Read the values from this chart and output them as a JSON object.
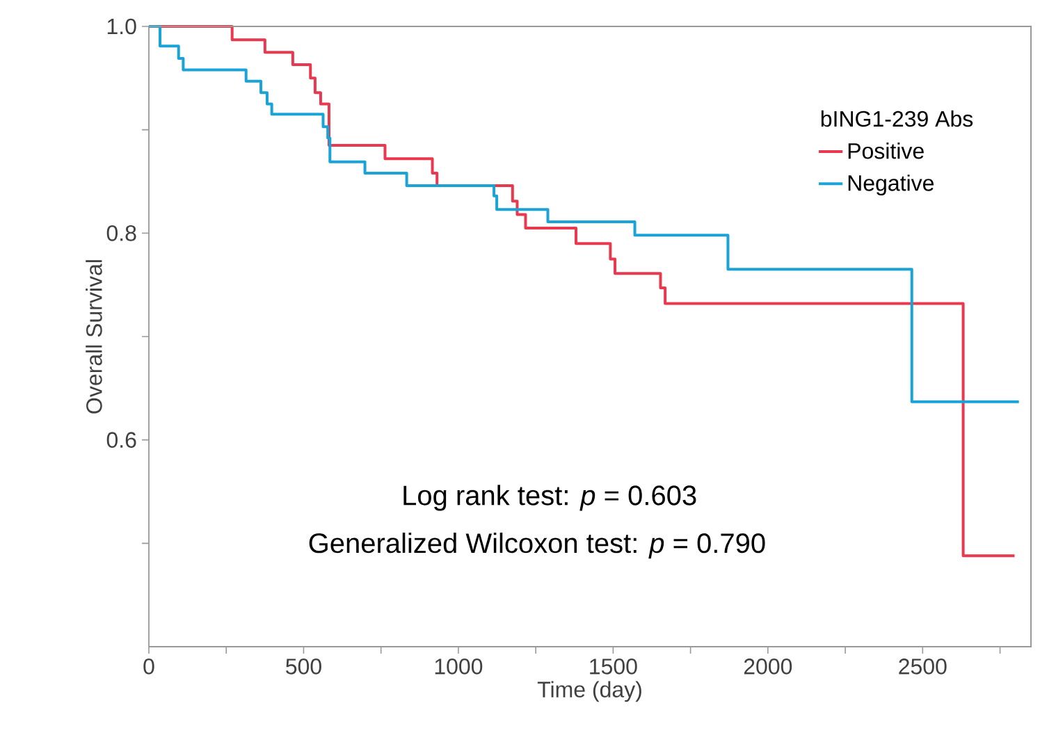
{
  "chart_data": {
    "type": "step",
    "xlabel": "Time (day)",
    "ylabel": "Overall Survival",
    "legend_title": "bING1-239 Abs",
    "legend": "top right",
    "xlim": [
      0,
      2850
    ],
    "ylim": [
      0.4,
      1.0
    ],
    "xticks": [
      0,
      {
        "value": 250,
        "label": null
      },
      500,
      {
        "value": 750,
        "label": null
      },
      1000,
      {
        "value": 1250,
        "label": null
      },
      1500,
      {
        "value": 1750,
        "label": null
      },
      2000,
      {
        "value": 2250,
        "label": null
      },
      2500,
      {
        "value": 2750,
        "label": null
      }
    ],
    "yticks": [
      {
        "value": 0.5,
        "label": null
      },
      0.6,
      {
        "value": 0.7,
        "label": null
      },
      0.8,
      {
        "value": 0.9,
        "label": null
      },
      {
        "value": 1.0,
        "label": "1.0"
      }
    ],
    "annotations": [
      "Log rank test: *p* = 0.603",
      "Generalized Wilcoxon test: *p* = 0.790"
    ],
    "series": [
      {
        "name": "Positive",
        "color": "#e8394f",
        "x": [
          0,
          269,
          375,
          465,
          522,
          537,
          555,
          582,
          763,
          916,
          931,
          1175,
          1190,
          1217,
          1380,
          1491,
          1506,
          1653,
          1668,
          2631,
          2797
        ],
        "values": [
          1.0,
          0.987,
          0.975,
          0.963,
          0.95,
          0.936,
          0.925,
          0.885,
          0.872,
          0.858,
          0.846,
          0.831,
          0.818,
          0.805,
          0.79,
          0.775,
          0.761,
          0.747,
          0.732,
          0.488,
          0.488
        ]
      },
      {
        "name": "Negative",
        "color": "#1aa3d6",
        "x": [
          0,
          36,
          96,
          111,
          314,
          362,
          382,
          397,
          563,
          578,
          585,
          698,
          833,
          1115,
          1124,
          1289,
          1570,
          1871,
          2465,
          2811
        ],
        "values": [
          1.0,
          0.981,
          0.969,
          0.958,
          0.947,
          0.936,
          0.925,
          0.915,
          0.903,
          0.892,
          0.869,
          0.858,
          0.846,
          0.836,
          0.823,
          0.811,
          0.798,
          0.765,
          0.637,
          0.637
        ]
      }
    ]
  }
}
